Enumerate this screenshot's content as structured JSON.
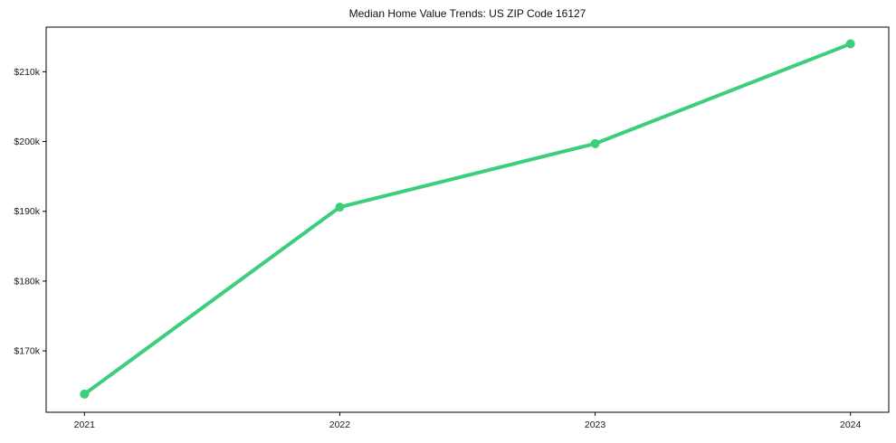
{
  "chart_data": {
    "type": "line",
    "title": "Median Home Value Trends: US ZIP Code 16127",
    "x": [
      2021,
      2022,
      2023,
      2024
    ],
    "series": [
      {
        "name": "Median Home Value",
        "values": [
          163800,
          190600,
          199700,
          214000
        ]
      }
    ],
    "x_tick_labels": [
      "2021",
      "2022",
      "2023",
      "2024"
    ],
    "y_ticks": [
      170000,
      180000,
      190000,
      200000,
      210000
    ],
    "y_tick_labels": [
      "$170k",
      "$180k",
      "$190k",
      "$200k",
      "$210k"
    ],
    "xlim": [
      2020.85,
      2024.15
    ],
    "ylim": [
      161200,
      216400
    ],
    "xlabel": "",
    "ylabel": "",
    "grid": false,
    "legend": "none",
    "line_color": "#3cce7d",
    "marker": "circle",
    "frame_color": "#000000",
    "background_color": "#ffffff",
    "text_color": "#111111"
  }
}
